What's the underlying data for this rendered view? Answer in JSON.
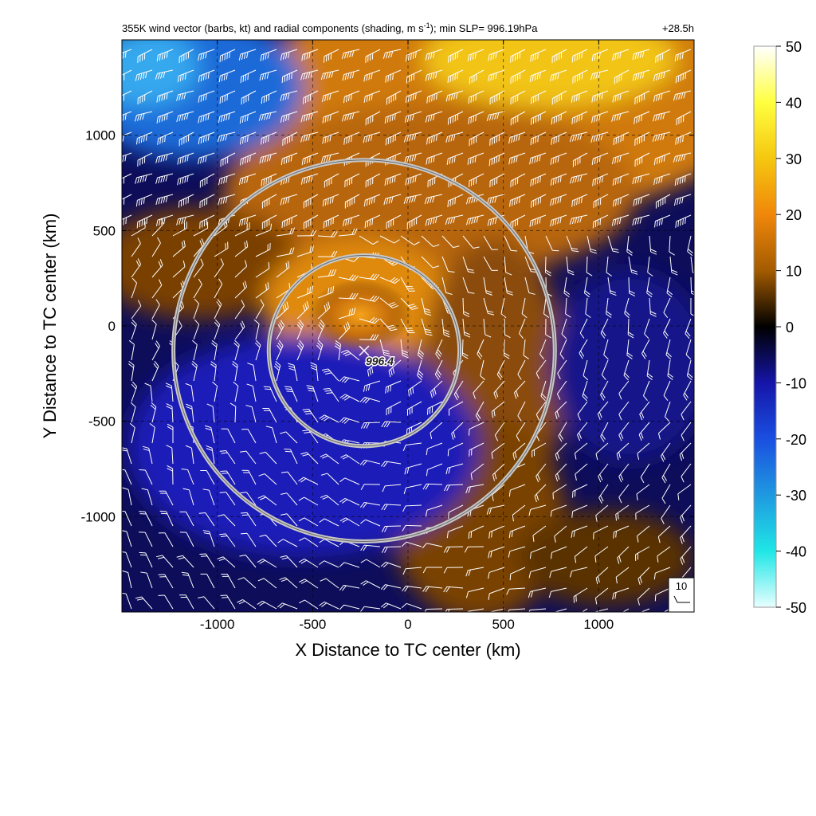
{
  "header": {
    "title_pre": "355K wind vector (barbs, kt) and radial components (shading, m s",
    "title_sup": "-1",
    "title_post": "); min SLP= 996.19hPa",
    "time_label": "+28.5h"
  },
  "chart_data": {
    "type": "heatmap",
    "xlabel": "X Distance to TC center (km)",
    "ylabel": "Y Distance to TC center (km)",
    "xlim": [
      -1500,
      1500
    ],
    "ylim": [
      -1500,
      1500
    ],
    "x_ticks": [
      -1000,
      -500,
      0,
      500,
      1000
    ],
    "y_ticks": [
      -1000,
      -500,
      0,
      500,
      1000
    ],
    "grid": true,
    "colorbar": {
      "range": [
        -50,
        50
      ],
      "ticks": [
        50,
        40,
        30,
        20,
        10,
        0,
        -10,
        -20,
        -30,
        -40,
        -50
      ],
      "stops": [
        {
          "v": -50,
          "color": "#e8ffff"
        },
        {
          "v": -40,
          "color": "#1fe6e6"
        },
        {
          "v": -30,
          "color": "#1f99e0"
        },
        {
          "v": -20,
          "color": "#1a4fe0"
        },
        {
          "v": -10,
          "color": "#1515a8"
        },
        {
          "v": 0,
          "color": "#000000"
        },
        {
          "v": 10,
          "color": "#a35b00"
        },
        {
          "v": 20,
          "color": "#f0870a"
        },
        {
          "v": 30,
          "color": "#f5c70f"
        },
        {
          "v": 40,
          "color": "#ffff40"
        },
        {
          "v": 50,
          "color": "#ffffff"
        }
      ]
    },
    "center_marker": {
      "x": -230,
      "y": -130,
      "label": "996.4"
    },
    "range_rings": [
      {
        "center": [
          -230,
          -130
        ],
        "radius_km": 500
      },
      {
        "center": [
          -230,
          -130
        ],
        "radius_km": 1000
      }
    ],
    "reference_barb": {
      "label": "10"
    }
  }
}
